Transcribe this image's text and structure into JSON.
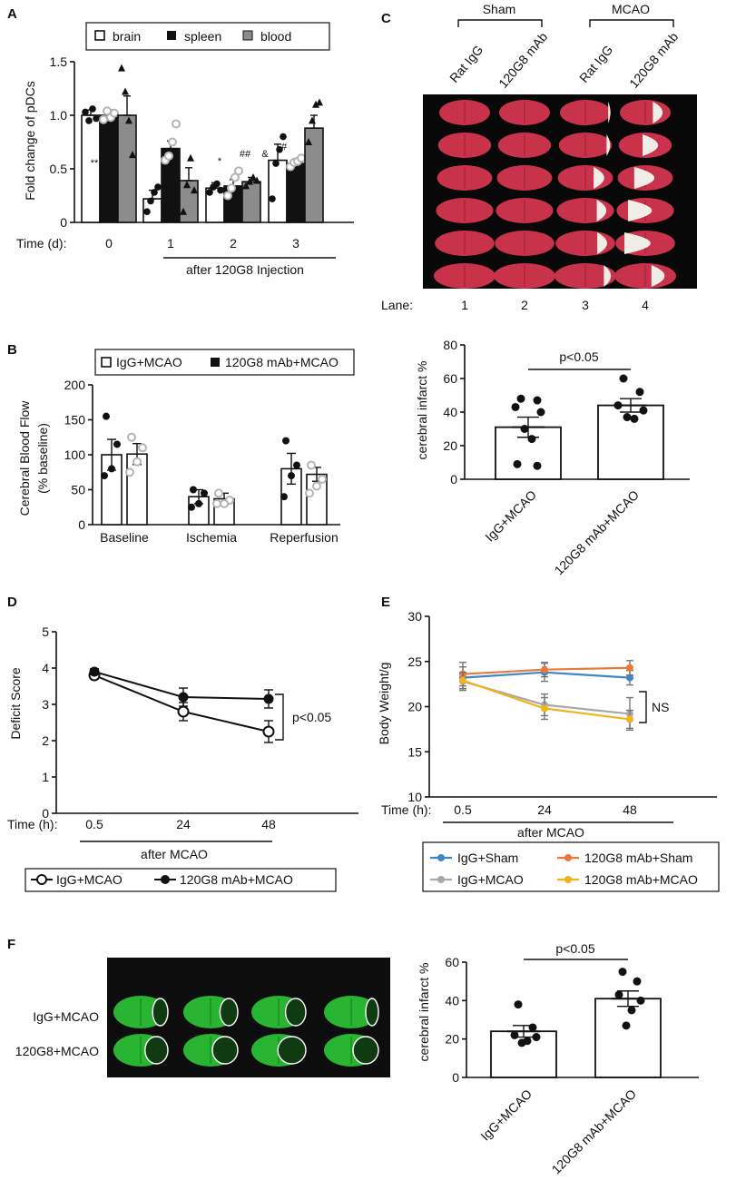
{
  "panel_labels": {
    "A": "A",
    "B": "B",
    "C": "C",
    "D": "D",
    "E": "E",
    "F": "F"
  },
  "colors": {
    "black": "#111111",
    "gray": "#8c8c8c",
    "light_gray": "#b5b5b5",
    "blue": "#3f86c6",
    "orange": "#e8793a",
    "silver": "#a8a8a8",
    "yellow": "#f2b21c",
    "tissue_red": "#c8324a",
    "tissue_pale": "#f0ece6",
    "fluor_green": "#2fd23a"
  },
  "chart_data": [
    {
      "id": "A",
      "type": "bar",
      "title": "",
      "ylabel": "Fold change of pDCs",
      "xlabel": "after 120G8 Injection",
      "time_label": "Time (d):",
      "categories": [
        "0",
        "1",
        "2",
        "3"
      ],
      "ylim": [
        0,
        1.5
      ],
      "yticks": [
        "0",
        "0.5",
        "1.0",
        "1.5"
      ],
      "legend": [
        "brain",
        "spleen",
        "blood"
      ],
      "series": [
        {
          "name": "brain",
          "values": [
            1.0,
            0.22,
            0.32,
            0.58
          ],
          "errors": [
            0.05,
            0.08,
            0.05,
            0.15
          ]
        },
        {
          "name": "spleen",
          "values": [
            1.0,
            0.69,
            0.34,
            0.55
          ],
          "errors": [
            0.05,
            0.07,
            0.06,
            0.03
          ]
        },
        {
          "name": "blood",
          "values": [
            1.0,
            0.39,
            0.38,
            0.88
          ],
          "errors": [
            0.18,
            0.12,
            0.04,
            0.12
          ]
        }
      ],
      "points": [
        [
          [
            1.03,
            0.95,
            1.06,
            0.97
          ],
          [
            0.96,
            1.04,
            0.98,
            1.02
          ],
          [
            1.44,
            1.22,
            0.95,
            0.63
          ]
        ],
        [
          [
            0.1,
            0.2,
            0.28,
            0.33
          ],
          [
            0.58,
            0.62,
            0.75,
            0.92
          ],
          [
            0.1,
            0.35,
            0.6,
            0.3
          ]
        ],
        [
          [
            0.28,
            0.33,
            0.36,
            0.3
          ],
          [
            0.25,
            0.32,
            0.42,
            0.48
          ],
          [
            0.34,
            0.38,
            0.42,
            0.39
          ]
        ],
        [
          [
            0.22,
            0.55,
            0.68,
            0.8
          ],
          [
            0.52,
            0.56,
            0.57,
            0.6
          ],
          [
            0.75,
            0.95,
            1.1,
            1.12
          ]
        ]
      ],
      "annotations": [
        "**",
        "*",
        "##",
        "&",
        "#"
      ]
    },
    {
      "id": "B",
      "type": "bar",
      "ylabel": "Cerebral Blood Flow",
      "ylabel2": "(% baseline)",
      "categories": [
        "Baseline",
        "Ischemia",
        "Reperfusion"
      ],
      "ylim": [
        0,
        200
      ],
      "yticks": [
        "0",
        "50",
        "100",
        "150",
        "200"
      ],
      "legend": [
        "IgG+MCAO",
        "120G8 mAb+MCAO"
      ],
      "series": [
        {
          "name": "IgG+MCAO",
          "values": [
            100,
            40,
            80
          ],
          "errors": [
            22,
            10,
            22
          ]
        },
        {
          "name": "120G8 mAb+MCAO",
          "values": [
            101,
            37,
            72
          ],
          "errors": [
            15,
            8,
            10
          ]
        }
      ],
      "points": [
        [
          [
            155,
            115,
            80,
            70
          ],
          [
            125,
            110,
            90,
            75
          ]
        ],
        [
          [
            50,
            45,
            30,
            25
          ],
          [
            45,
            35,
            30,
            30
          ]
        ],
        [
          [
            120,
            85,
            70,
            40
          ],
          [
            85,
            65,
            55,
            45
          ]
        ]
      ]
    },
    {
      "id": "C",
      "type": "bar",
      "ylabel": "cerebral infarct %",
      "categories": [
        "IgG+MCAO",
        "120G8 mAb+MCAO"
      ],
      "ylim": [
        0,
        80
      ],
      "yticks": [
        "0",
        "20",
        "40",
        "60",
        "80"
      ],
      "values": [
        31,
        44
      ],
      "errors": [
        6,
        4
      ],
      "points": [
        [
          48,
          47,
          43,
          40,
          30,
          24,
          9,
          8
        ],
        [
          60,
          52,
          44,
          41,
          37,
          36
        ]
      ],
      "significance": "p<0.05",
      "image": {
        "group_labels": [
          "Sham",
          "MCAO"
        ],
        "lane_labels": [
          "Rat IgG",
          "120G8 mAb",
          "Rat IgG",
          "120G8 mAb"
        ],
        "lane_title": "Lane:",
        "lane_numbers": [
          "1",
          "2",
          "3",
          "4"
        ]
      }
    },
    {
      "id": "D",
      "type": "line",
      "ylabel": "Deficit Score",
      "xlabel": "after MCAO",
      "time_label": "Time (h):",
      "x": [
        "0.5",
        "24",
        "48"
      ],
      "ylim": [
        0,
        5
      ],
      "yticks": [
        "0",
        "1",
        "2",
        "3",
        "4",
        "5"
      ],
      "series": [
        {
          "name": "IgG+MCAO",
          "values": [
            3.8,
            2.8,
            2.25
          ],
          "errors": [
            0.1,
            0.25,
            0.3
          ]
        },
        {
          "name": "120G8 mAb+MCAO",
          "values": [
            3.9,
            3.2,
            3.15
          ],
          "errors": [
            0.08,
            0.25,
            0.25
          ]
        }
      ],
      "significance": "p<0.05"
    },
    {
      "id": "E",
      "type": "line",
      "ylabel": "Body Weight/g",
      "xlabel": "after MCAO",
      "time_label": "Time (h):",
      "x": [
        "0.5",
        "24",
        "48"
      ],
      "ylim": [
        10,
        30
      ],
      "yticks": [
        "10",
        "15",
        "20",
        "25",
        "30"
      ],
      "series": [
        {
          "name": "IgG+Sham",
          "values": [
            23.2,
            23.8,
            23.2
          ],
          "errors": [
            1.2,
            1.0,
            0.8
          ]
        },
        {
          "name": "120G8 mAb+Sham",
          "values": [
            23.6,
            24.1,
            24.3
          ],
          "errors": [
            1.3,
            0.8,
            0.8
          ]
        },
        {
          "name": "IgG+MCAO",
          "values": [
            22.8,
            20.2,
            19.2
          ],
          "errors": [
            1.0,
            1.2,
            1.8
          ]
        },
        {
          "name": "120G8 mAb+MCAO",
          "values": [
            22.9,
            19.8,
            18.6
          ],
          "errors": [
            0.9,
            1.2,
            1.0
          ]
        }
      ],
      "significance": "NS"
    },
    {
      "id": "F",
      "type": "bar",
      "ylabel": "cerebral infarct %",
      "categories": [
        "IgG+MCAO",
        "120G8 mAb+MCAO"
      ],
      "ylim": [
        0,
        60
      ],
      "yticks": [
        "0",
        "20",
        "40",
        "60"
      ],
      "values": [
        24,
        41
      ],
      "errors": [
        3,
        4
      ],
      "points": [
        [
          38,
          26,
          22,
          21,
          19,
          18
        ],
        [
          55,
          50,
          43,
          40,
          35,
          27
        ]
      ],
      "significance": "p<0.05",
      "image": {
        "row_labels": [
          "IgG+MCAO",
          "120G8+MCAO"
        ]
      }
    }
  ]
}
